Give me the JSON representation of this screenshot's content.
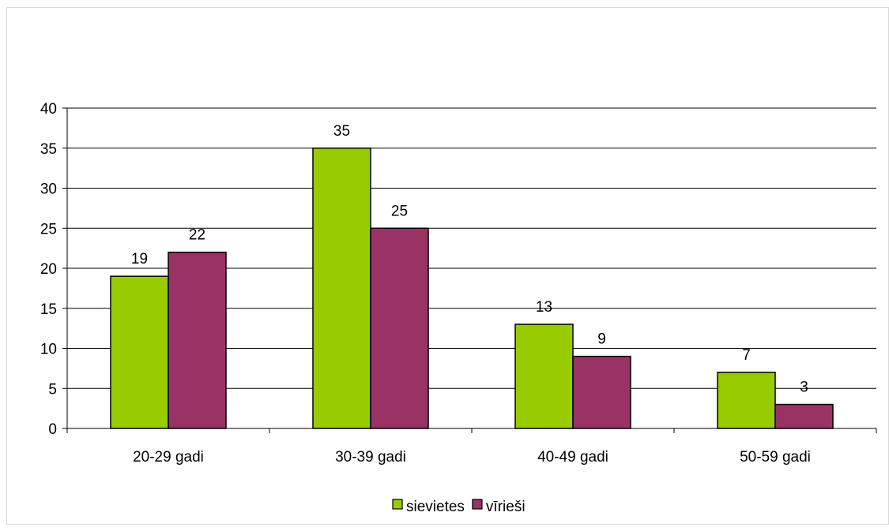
{
  "chart_data": {
    "type": "bar",
    "categories": [
      "20-29 gadi",
      "30-39 gadi",
      "40-49 gadi",
      "50-59 gadi"
    ],
    "series": [
      {
        "name": "sievietes",
        "values": [
          19,
          35,
          13,
          7
        ],
        "color": "#99cc00"
      },
      {
        "name": "vīrieši",
        "values": [
          22,
          25,
          9,
          3
        ],
        "color": "#993366"
      }
    ],
    "y_ticks": [
      "0",
      "5",
      "10",
      "15",
      "20",
      "25",
      "30",
      "35",
      "40"
    ],
    "ylim": [
      0,
      40
    ],
    "grid": true,
    "legend_position": "bottom",
    "data_labels": true
  }
}
